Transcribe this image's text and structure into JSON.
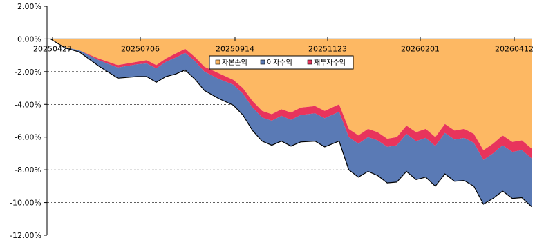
{
  "chart_data": {
    "type": "area",
    "stacking": "negative-cumulative",
    "ylim": [
      -12,
      2
    ],
    "y_ticks": [
      2,
      0,
      -2,
      -4,
      -6,
      -8,
      -10,
      -12
    ],
    "y_tick_labels": [
      "2.00%",
      "0.00%",
      "-2.00%",
      "-4.00%",
      "-6.00%",
      "-8.00%",
      "-10.00%",
      "-12.00%"
    ],
    "x_tick_labels": [
      "20250427",
      "20250706",
      "20250914",
      "20251123",
      "20260201",
      "20260412"
    ],
    "grid": "horizontal-dotted",
    "legend_position": "top-center",
    "x": [
      0,
      3,
      6,
      10,
      14,
      18,
      20,
      22,
      24,
      26,
      28,
      30,
      32,
      35,
      38,
      40,
      42,
      44,
      46,
      48,
      50,
      52,
      55,
      57,
      60,
      62,
      64,
      66,
      68,
      70,
      72,
      74,
      76,
      78,
      80,
      82,
      84,
      86,
      88,
      90,
      92,
      94,
      96,
      98,
      100
    ],
    "series": [
      {
        "name": "자본손익",
        "color": "#FDB863",
        "values": [
          0.0,
          -0.5,
          -0.7,
          -1.2,
          -1.6,
          -1.4,
          -1.3,
          -1.6,
          -1.2,
          -0.9,
          -0.6,
          -1.1,
          -1.7,
          -2.1,
          -2.5,
          -3.0,
          -3.8,
          -4.4,
          -4.6,
          -4.3,
          -4.5,
          -4.2,
          -4.1,
          -4.4,
          -4.0,
          -5.5,
          -5.9,
          -5.5,
          -5.7,
          -6.1,
          -6.0,
          -5.3,
          -5.7,
          -5.5,
          -6.0,
          -5.2,
          -5.6,
          -5.5,
          -5.8,
          -6.8,
          -6.4,
          -5.9,
          -6.3,
          -6.2,
          -6.7
        ]
      },
      {
        "name": "재투자수익",
        "color": "#E8345C",
        "values": [
          0.0,
          0.0,
          0.0,
          -0.1,
          -0.15,
          -0.15,
          -0.2,
          -0.2,
          -0.2,
          -0.25,
          -0.25,
          -0.25,
          -0.3,
          -0.35,
          -0.3,
          -0.35,
          -0.4,
          -0.4,
          -0.4,
          -0.4,
          -0.45,
          -0.45,
          -0.45,
          -0.45,
          -0.45,
          -0.5,
          -0.5,
          -0.5,
          -0.5,
          -0.5,
          -0.5,
          -0.5,
          -0.55,
          -0.55,
          -0.55,
          -0.55,
          -0.55,
          -0.55,
          -0.55,
          -0.6,
          -0.6,
          -0.6,
          -0.6,
          -0.6,
          -0.6
        ]
      },
      {
        "name": "이자수익",
        "color": "#5A7AB5",
        "values": [
          0.0,
          -0.05,
          -0.1,
          -0.35,
          -0.65,
          -0.75,
          -0.8,
          -0.85,
          -0.9,
          -1.0,
          -1.05,
          -1.1,
          -1.15,
          -1.2,
          -1.25,
          -1.3,
          -1.4,
          -1.45,
          -1.5,
          -1.55,
          -1.6,
          -1.65,
          -1.7,
          -1.75,
          -1.8,
          -2.0,
          -2.05,
          -2.1,
          -2.15,
          -2.2,
          -2.25,
          -2.3,
          -2.35,
          -2.4,
          -2.45,
          -2.5,
          -2.55,
          -2.6,
          -2.65,
          -2.7,
          -2.75,
          -2.8,
          -2.85,
          -2.9,
          -2.95
        ]
      }
    ]
  },
  "legend": {
    "items": [
      {
        "label": "자본손익",
        "color": "#FDB863"
      },
      {
        "label": "이자수익",
        "color": "#5A7AB5"
      },
      {
        "label": "재투자수익",
        "color": "#E8345C"
      }
    ]
  }
}
